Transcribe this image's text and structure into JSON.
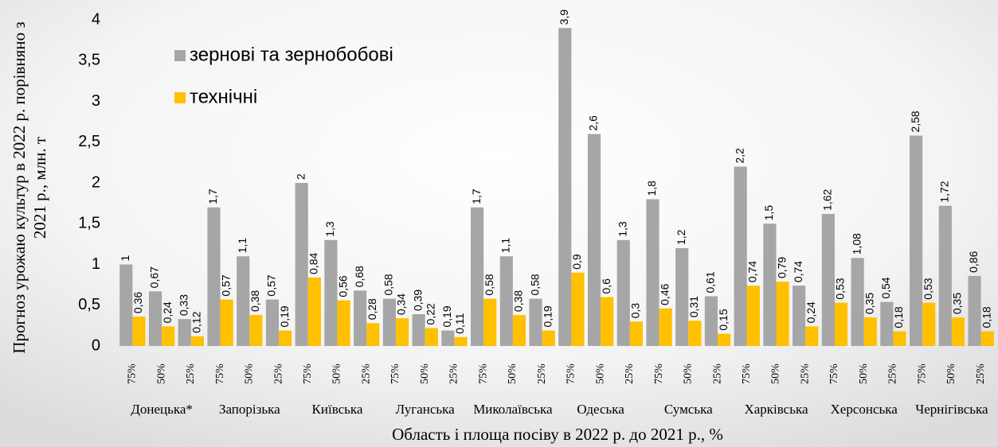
{
  "chart_data": {
    "type": "bar",
    "ylabel": "Прогноз урожаю культур в 2022 р. порівняно  з 2021 р., млн. т",
    "xlabel": "Область і площа посіву в 2022 р. до 2021 р., %",
    "categories": [
      "75%",
      "50%",
      "25%",
      "75%",
      "50%",
      "25%",
      "75%",
      "50%",
      "25%",
      "75%",
      "50%",
      "25%",
      "75%",
      "50%",
      "25%",
      "75%",
      "50%",
      "25%",
      "75%",
      "50%",
      "25%",
      "75%",
      "50%",
      "25%",
      "75%",
      "50%",
      "25%",
      "75%",
      "50%",
      "25%"
    ],
    "groups": [
      "Донецька*",
      "Запорізька",
      "Київська",
      "Луганська",
      "Миколаївська",
      "Одеська",
      "Сумська",
      "Харківська",
      "Херсонська",
      "Чернігівська"
    ],
    "series": [
      {
        "name": "зернові та зернобобові",
        "color": "#a6a6a6",
        "values": [
          1,
          0.67,
          0.33,
          1.7,
          1.1,
          0.57,
          2,
          1.3,
          0.68,
          0.58,
          0.39,
          0.19,
          1.7,
          1.1,
          0.58,
          3.9,
          2.6,
          1.3,
          1.8,
          1.2,
          0.61,
          2.2,
          1.5,
          0.74,
          1.62,
          1.08,
          0.54,
          2.58,
          1.72,
          0.86
        ],
        "value_labels": [
          "1",
          "0,67",
          "0,33",
          "1,7",
          "1,1",
          "0,57",
          "2",
          "1,3",
          "0,68",
          "0,58",
          "0,39",
          "0,19",
          "1,7",
          "1,1",
          "0,58",
          "3,9",
          "2,6",
          "1,3",
          "1,8",
          "1,2",
          "0,61",
          "2,2",
          "1,5",
          "0,74",
          "1,62",
          "1,08",
          "0,54",
          "2,58",
          "1,72",
          "0,86"
        ]
      },
      {
        "name": "технічні",
        "color": "#ffc000",
        "values": [
          0.36,
          0.24,
          0.12,
          0.57,
          0.38,
          0.19,
          0.84,
          0.56,
          0.28,
          0.34,
          0.22,
          0.11,
          0.58,
          0.38,
          0.19,
          0.9,
          0.6,
          0.3,
          0.46,
          0.31,
          0.15,
          0.74,
          0.79,
          0.24,
          0.53,
          0.35,
          0.18,
          0.53,
          0.35,
          0.18
        ],
        "value_labels": [
          "0,36",
          "0,24",
          "0,12",
          "0,57",
          "0,38",
          "0,19",
          "0,84",
          "0,56",
          "0,28",
          "0,34",
          "0,22",
          "0,11",
          "0,58",
          "0,38",
          "0,19",
          "0,9",
          "0,6",
          "0,3",
          "0,46",
          "0,31",
          "0,15",
          "0,74",
          "0,79",
          "0,24",
          "0,53",
          "0,35",
          "0,18",
          "0,53",
          "0,35",
          "0,18"
        ]
      }
    ],
    "ylim": [
      0,
      4
    ],
    "yticks": [
      0,
      {
        "value": 0.5,
        "label": "0,5"
      },
      1,
      {
        "value": 1.5,
        "label": "1,5"
      },
      2,
      {
        "value": 2.5,
        "label": "2,5"
      },
      3,
      {
        "value": 3.5,
        "label": "3,5"
      },
      4
    ],
    "legend": "upper left"
  }
}
